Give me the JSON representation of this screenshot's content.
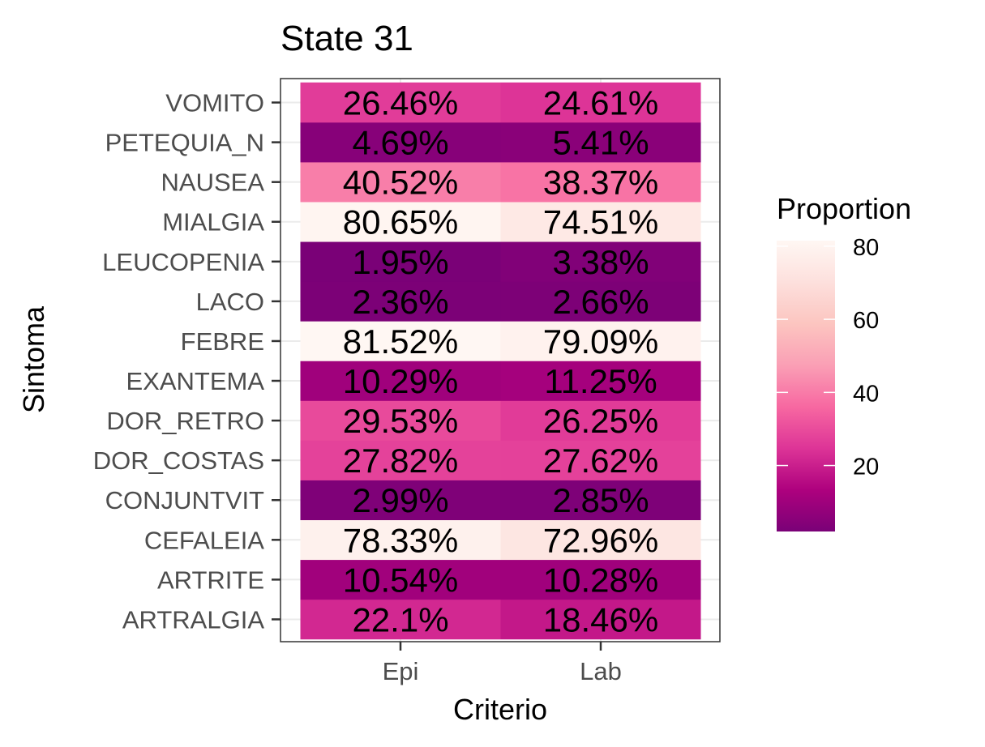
{
  "chart_data": {
    "type": "heatmap",
    "title": "State 31",
    "xlabel": "Criterio",
    "ylabel": "Sintoma",
    "x_categories": [
      "Epi",
      "Lab"
    ],
    "y_categories": [
      "ARTRALGIA",
      "ARTRITE",
      "CEFALEIA",
      "CONJUNTVIT",
      "DOR_COSTAS",
      "DOR_RETRO",
      "EXANTEMA",
      "FEBRE",
      "LACO",
      "LEUCOPENIA",
      "MIALGIA",
      "NAUSEA",
      "PETEQUIA_N",
      "VOMITO"
    ],
    "values": [
      [
        22.1,
        18.46
      ],
      [
        10.54,
        10.28
      ],
      [
        78.33,
        72.96
      ],
      [
        2.99,
        2.85
      ],
      [
        27.82,
        27.62
      ],
      [
        29.53,
        26.25
      ],
      [
        10.29,
        11.25
      ],
      [
        81.52,
        79.09
      ],
      [
        2.36,
        2.66
      ],
      [
        1.95,
        3.38
      ],
      [
        80.65,
        74.51
      ],
      [
        40.52,
        38.37
      ],
      [
        4.69,
        5.41
      ],
      [
        26.46,
        24.61
      ]
    ],
    "labels": [
      [
        "22.1%",
        "18.46%"
      ],
      [
        "10.54%",
        "10.28%"
      ],
      [
        "78.33%",
        "72.96%"
      ],
      [
        "2.99%",
        "2.85%"
      ],
      [
        "27.82%",
        "27.62%"
      ],
      [
        "29.53%",
        "26.25%"
      ],
      [
        "10.29%",
        "11.25%"
      ],
      [
        "81.52%",
        "79.09%"
      ],
      [
        "2.36%",
        "2.66%"
      ],
      [
        "1.95%",
        "3.38%"
      ],
      [
        "80.65%",
        "74.51%"
      ],
      [
        "40.52%",
        "38.37%"
      ],
      [
        "4.69%",
        "5.41%"
      ],
      [
        "26.46%",
        "24.61%"
      ]
    ],
    "legend": {
      "title": "Proportion",
      "ticks": [
        20,
        40,
        60,
        80
      ],
      "range": [
        1.95,
        81.52
      ],
      "placement": "right"
    },
    "colors": {
      "scale": [
        "#7a0177",
        "#ae017e",
        "#dd3497",
        "#f768a1",
        "#fa9fb5",
        "#fcc5c0",
        "#fde0dd",
        "#fff7f3"
      ]
    },
    "grid": true
  }
}
